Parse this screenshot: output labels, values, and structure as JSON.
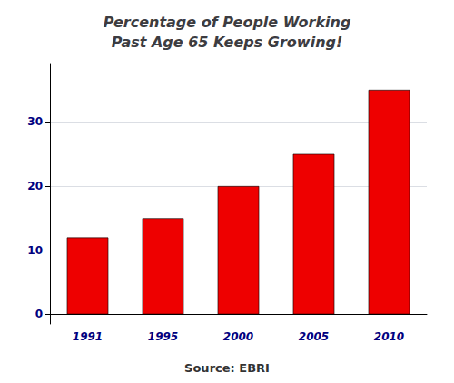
{
  "chart_data": {
    "type": "bar",
    "title": "Percentage of People Working\nPast Age 65 Keeps Growing!",
    "categories": [
      "1991",
      "1995",
      "2000",
      "2005",
      "2010"
    ],
    "values": [
      12,
      15,
      20,
      25,
      35
    ],
    "color": "#EE0000",
    "ylim": [
      -1.5,
      39.1
    ],
    "yticks": [
      0,
      10,
      20,
      30
    ],
    "grid": true,
    "annotations": [
      "Source: EBRI"
    ]
  }
}
